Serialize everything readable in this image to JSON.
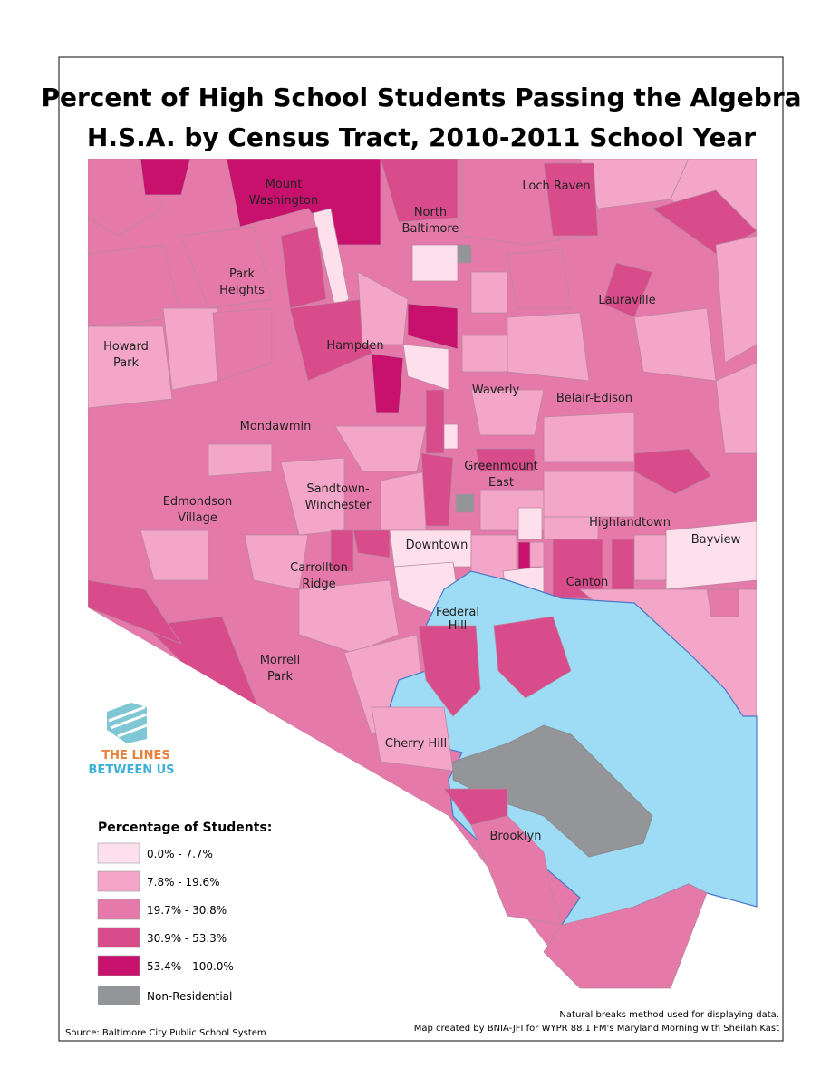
{
  "title": [
    "Percent of High School Students Passing the Algebra",
    "H.S.A. by Census Tract, 2010-2011 School Year"
  ],
  "neighborhoods": [
    [
      "Mount",
      "Washington"
    ],
    [
      "North",
      "Baltimore"
    ],
    [
      "Loch Raven"
    ],
    [
      "Park",
      "Heights"
    ],
    [
      "Lauraville"
    ],
    [
      "Howard",
      "Park"
    ],
    [
      "Hampden"
    ],
    [
      "Waverly"
    ],
    [
      "Belair-Edison"
    ],
    [
      "Mondawmin"
    ],
    [
      "Greenmount",
      "East"
    ],
    [
      "Sandtown-",
      "Winchester"
    ],
    [
      "Edmondson",
      "Village"
    ],
    [
      "Highlandtown"
    ],
    [
      "Bayview"
    ],
    [
      "Downtown"
    ],
    [
      "Carrollton",
      "Ridge"
    ],
    [
      "Canton"
    ],
    [
      "Federal",
      "Hill"
    ],
    [
      "Morrell",
      "Park"
    ],
    [
      "Cherry Hill"
    ],
    [
      "Brooklyn"
    ]
  ],
  "logo": [
    "THE LINES",
    "BETWEEN US"
  ],
  "legend": {
    "title": "Percentage of Students:",
    "items": [
      {
        "label": "0.0% - 7.7%",
        "color": "#fde0ec"
      },
      {
        "label": "7.8% - 19.6%",
        "color": "#f3a6c8"
      },
      {
        "label": "19.7% - 30.8%",
        "color": "#e57aaa"
      },
      {
        "label": "30.9% - 53.3%",
        "color": "#d84c8c"
      },
      {
        "label": "53.4% - 100.0%",
        "color": "#c8116d"
      },
      {
        "label": "Non-Residential",
        "color": "#939598"
      }
    ]
  },
  "notes": [
    "Natural breaks method used for displaying data.",
    "Map created by BNIA-JFI for WYPR 88.1 FM's Maryland Morning with Sheilah Kast"
  ],
  "source": "Source: Baltimore City Public School System"
}
